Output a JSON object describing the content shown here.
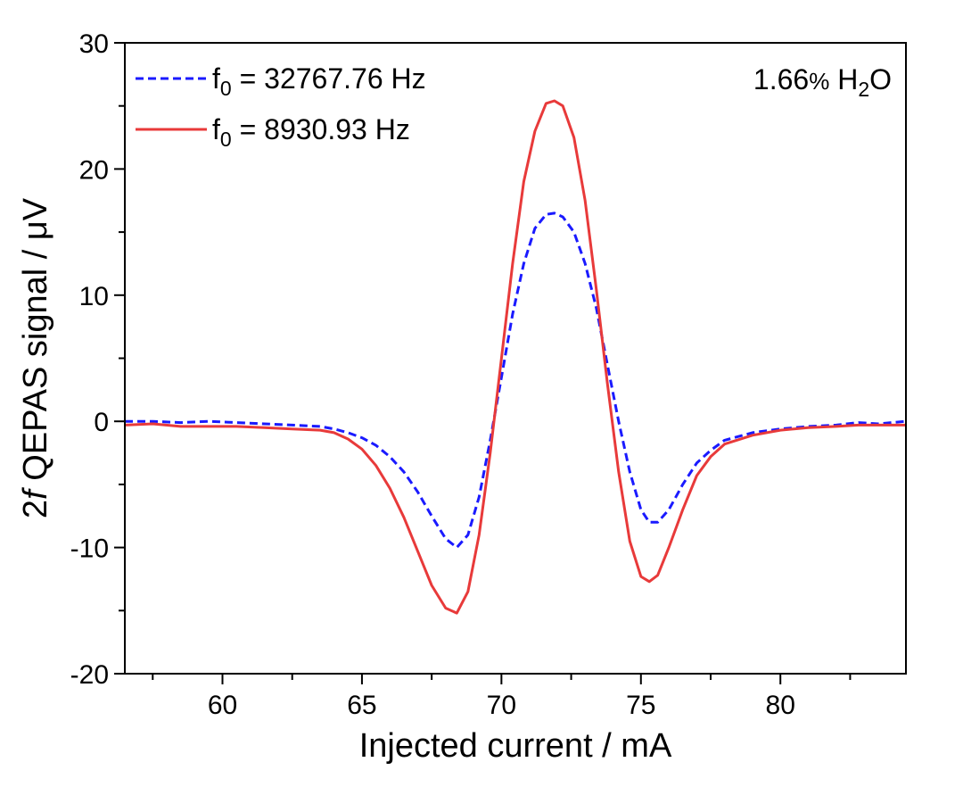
{
  "chart_data": {
    "type": "line",
    "xlabel": "Injected current / mA",
    "ylabel_prefix": "2",
    "ylabel_italic": "f",
    "ylabel_suffix": " QEPAS signal / μV",
    "xlim": [
      56.5,
      84.5
    ],
    "ylim": [
      -20,
      30
    ],
    "x_ticks": [
      60,
      65,
      70,
      75,
      80
    ],
    "x_tick_labels": [
      "60",
      "65",
      "70",
      "75",
      "80"
    ],
    "y_ticks": [
      -20,
      -10,
      0,
      10,
      20,
      30
    ],
    "y_tick_labels": [
      "-20",
      "-10",
      "0",
      "10",
      "20",
      "30"
    ],
    "grid": false,
    "legend_position": "top-left",
    "annotation": {
      "prefix": "1.66",
      "percent": "%",
      "species_main": " H",
      "species_sub": "2",
      "species_end": "O",
      "position": "top-right"
    },
    "series": [
      {
        "name_prefix": "f",
        "name_sub": "0",
        "name_suffix": " = 32767.76 Hz",
        "color": "#1a1aff",
        "style": "dashed",
        "x": [
          56.5,
          57.5,
          58.5,
          59.5,
          60.5,
          61.5,
          62.5,
          63.5,
          64.0,
          64.5,
          65.0,
          65.5,
          66.0,
          66.5,
          67.0,
          67.5,
          68.0,
          68.4,
          68.8,
          69.2,
          69.6,
          70.0,
          70.4,
          70.8,
          71.2,
          71.6,
          71.9,
          72.2,
          72.6,
          73.0,
          73.4,
          73.8,
          74.2,
          74.6,
          75.0,
          75.3,
          75.6,
          76.0,
          76.5,
          77.0,
          77.5,
          78.0,
          79.0,
          80.0,
          81.0,
          82.0,
          82.8,
          83.5,
          84.5
        ],
        "y": [
          0.0,
          0.0,
          -0.1,
          0.0,
          -0.1,
          -0.2,
          -0.3,
          -0.4,
          -0.6,
          -0.9,
          -1.3,
          -1.9,
          -2.8,
          -4.0,
          -5.6,
          -7.5,
          -9.3,
          -10.0,
          -9.0,
          -6.0,
          -1.5,
          3.5,
          8.5,
          12.5,
          15.3,
          16.4,
          16.5,
          16.2,
          15.0,
          12.5,
          9.0,
          4.5,
          0.0,
          -4.0,
          -7.0,
          -8.0,
          -8.0,
          -7.0,
          -5.0,
          -3.3,
          -2.3,
          -1.5,
          -0.9,
          -0.6,
          -0.4,
          -0.3,
          -0.1,
          -0.2,
          0.0
        ]
      },
      {
        "name_prefix": "f",
        "name_sub": "0",
        "name_suffix": " = 8930.93 Hz",
        "color": "#e83a3a",
        "style": "solid",
        "x": [
          56.5,
          57.5,
          58.5,
          59.5,
          60.5,
          61.5,
          62.5,
          63.5,
          64.0,
          64.5,
          65.0,
          65.5,
          66.0,
          66.5,
          67.0,
          67.5,
          68.0,
          68.4,
          68.8,
          69.2,
          69.6,
          70.0,
          70.4,
          70.8,
          71.2,
          71.6,
          71.9,
          72.2,
          72.6,
          73.0,
          73.4,
          73.8,
          74.2,
          74.6,
          75.0,
          75.3,
          75.6,
          76.0,
          76.5,
          77.0,
          77.5,
          78.0,
          79.0,
          80.0,
          81.0,
          82.0,
          82.8,
          83.5,
          84.5
        ],
        "y": [
          -0.3,
          -0.2,
          -0.4,
          -0.4,
          -0.4,
          -0.5,
          -0.6,
          -0.7,
          -0.9,
          -1.4,
          -2.2,
          -3.5,
          -5.3,
          -7.6,
          -10.3,
          -13.0,
          -14.8,
          -15.2,
          -13.5,
          -9.0,
          -2.5,
          5.0,
          12.5,
          19.0,
          23.0,
          25.2,
          25.4,
          25.0,
          22.5,
          17.5,
          10.5,
          3.0,
          -4.0,
          -9.5,
          -12.3,
          -12.7,
          -12.2,
          -10.0,
          -7.0,
          -4.3,
          -2.8,
          -1.8,
          -1.1,
          -0.7,
          -0.5,
          -0.4,
          -0.3,
          -0.3,
          -0.3
        ]
      }
    ]
  }
}
